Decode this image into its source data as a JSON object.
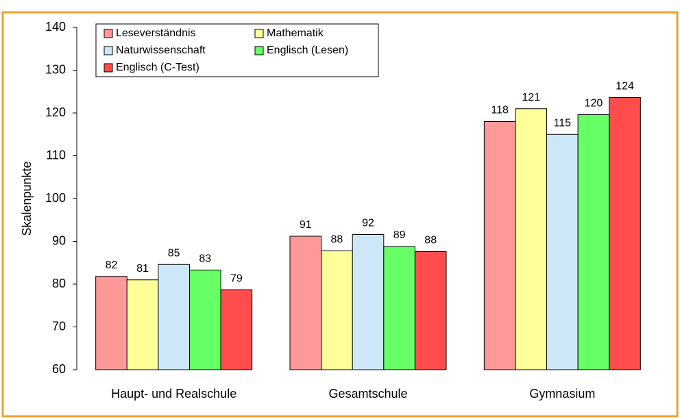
{
  "chart_data": {
    "type": "bar",
    "y_label": "Skalenpunkte",
    "categories": [
      "Haupt- und Realschule",
      "Gesamtschule",
      "Gymnasium"
    ],
    "series": [
      {
        "name": "Leseverständnis",
        "color": "#ff9999",
        "values": [
          81.8,
          91.2,
          118.0
        ],
        "value_labels": [
          "82",
          "91",
          "118"
        ]
      },
      {
        "name": "Mathematik",
        "color": "#ffff99",
        "values": [
          81.0,
          87.8,
          121.0
        ],
        "value_labels": [
          "81",
          "88",
          "121"
        ]
      },
      {
        "name": "Naturwissenschaft",
        "color": "#cce8f8",
        "values": [
          84.6,
          91.6,
          115.0
        ],
        "value_labels": [
          "85",
          "92",
          "115"
        ]
      },
      {
        "name": "Englisch (Lesen)",
        "color": "#66ff66",
        "values": [
          83.3,
          88.8,
          119.6
        ],
        "value_labels": [
          "83",
          "89",
          "120"
        ]
      },
      {
        "name": "Englisch (C-Test)",
        "color": "#ff4c4c",
        "values": [
          78.7,
          87.6,
          123.6
        ],
        "value_labels": [
          "79",
          "88",
          "124"
        ]
      }
    ],
    "ylim": [
      60,
      140
    ],
    "yticks": [
      60,
      70,
      80,
      90,
      100,
      110,
      120,
      130,
      140
    ],
    "legend": "upper left"
  }
}
